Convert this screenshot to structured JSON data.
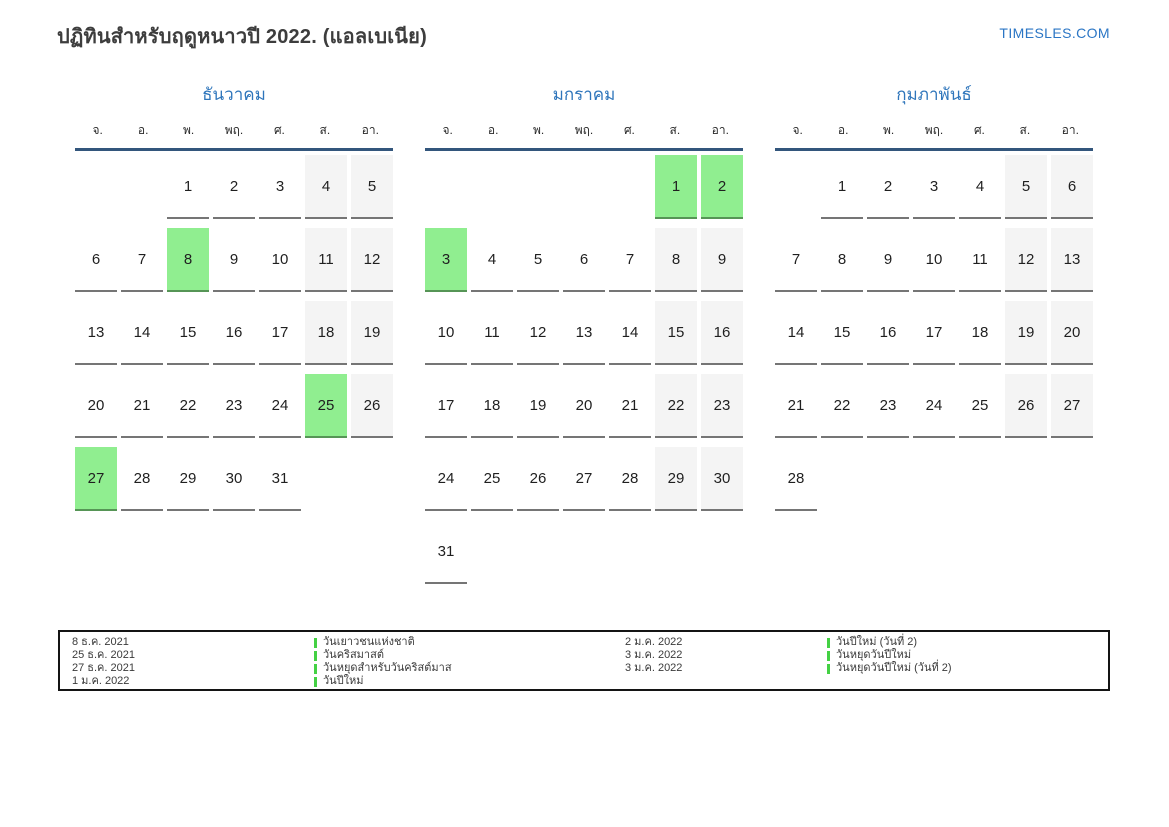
{
  "page": {
    "title": "ปฏิทินสำหรับฤดูหนาวปี 2022. (แอลเบเนีย)",
    "brand": "TIMESLES.COM"
  },
  "colors": {
    "accent_blue": "#2e75bb",
    "header_rule_navy": "#33567c",
    "holiday_green": "#90ee90",
    "weekend_gray": "#f4f4f4",
    "cell_border_gray": "#757575",
    "legend_bar_green": "#44d144"
  },
  "weekdays": [
    "จ.",
    "อ.",
    "พ.",
    "พฤ.",
    "ศ.",
    "ส.",
    "อา."
  ],
  "months": [
    {
      "name": "ธันวาคม",
      "weeks": [
        [
          null,
          null,
          1,
          2,
          3,
          4,
          5
        ],
        [
          6,
          7,
          8,
          9,
          10,
          11,
          12
        ],
        [
          13,
          14,
          15,
          16,
          17,
          18,
          19
        ],
        [
          20,
          21,
          22,
          23,
          24,
          25,
          26
        ],
        [
          27,
          28,
          29,
          30,
          31,
          null,
          null
        ]
      ],
      "highlights": [
        8,
        25,
        27
      ]
    },
    {
      "name": "มกราคม",
      "weeks": [
        [
          null,
          null,
          null,
          null,
          null,
          1,
          2
        ],
        [
          3,
          4,
          5,
          6,
          7,
          8,
          9
        ],
        [
          10,
          11,
          12,
          13,
          14,
          15,
          16
        ],
        [
          17,
          18,
          19,
          20,
          21,
          22,
          23
        ],
        [
          24,
          25,
          26,
          27,
          28,
          29,
          30
        ],
        [
          31,
          null,
          null,
          null,
          null,
          null,
          null
        ]
      ],
      "highlights": [
        1,
        2,
        3
      ]
    },
    {
      "name": "กุมภาพันธ์",
      "weeks": [
        [
          null,
          1,
          2,
          3,
          4,
          5,
          6
        ],
        [
          7,
          8,
          9,
          10,
          11,
          12,
          13
        ],
        [
          14,
          15,
          16,
          17,
          18,
          19,
          20
        ],
        [
          21,
          22,
          23,
          24,
          25,
          26,
          27
        ],
        [
          28,
          null,
          null,
          null,
          null,
          null,
          null
        ]
      ],
      "highlights": []
    }
  ],
  "legend": {
    "groups": [
      {
        "entries": [
          {
            "date": "8 ธ.ค. 2021",
            "name": "วันเยาวชนแห่งชาติ"
          },
          {
            "date": "25 ธ.ค. 2021",
            "name": "วันคริสมาสต์"
          },
          {
            "date": "27 ธ.ค. 2021",
            "name": "วันหยุดสำหรับวันคริสต์มาส"
          },
          {
            "date": "1 ม.ค. 2022",
            "name": "วันปีใหม่"
          }
        ]
      },
      {
        "entries": [
          {
            "date": "2 ม.ค. 2022",
            "name": "วันปีใหม่ (วันที่ 2)"
          },
          {
            "date": "3 ม.ค. 2022",
            "name": "วันหยุดวันปีใหม่"
          },
          {
            "date": "3 ม.ค. 2022",
            "name": "วันหยุดวันปีใหม่ (วันที่ 2)"
          }
        ]
      }
    ]
  }
}
